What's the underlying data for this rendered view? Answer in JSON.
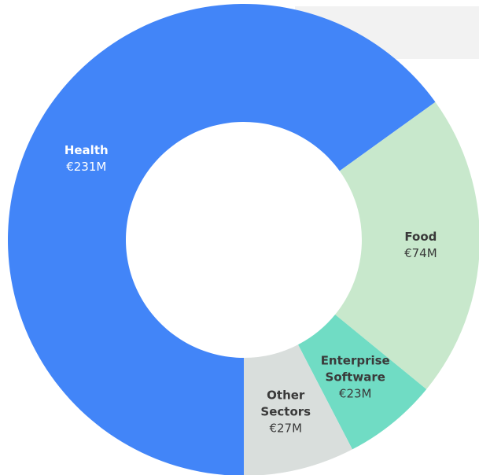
{
  "chart_data": {
    "type": "donut",
    "categories": [
      "Health",
      "Food",
      "Enterprise Software",
      "Other Sectors"
    ],
    "values": [
      231,
      74,
      23,
      27
    ],
    "value_labels": [
      "€231M",
      "€74M",
      "€23M",
      "€27M"
    ],
    "colors": [
      "#4285f8",
      "#c8e8cc",
      "#70dcc4",
      "#d9dedc"
    ]
  }
}
